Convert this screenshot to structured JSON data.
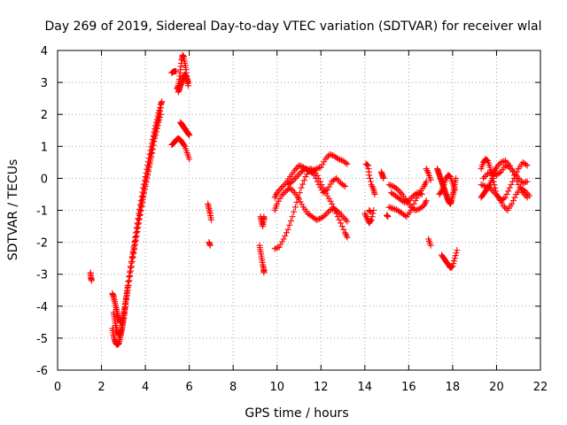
{
  "chart_data": {
    "type": "scatter",
    "title": "Day 269 of 2019, Sidereal Day-to-day VTEC variation (SDTVAR) for receiver wlal",
    "xlabel": "GPS time / hours",
    "ylabel": "SDTVAR / TECUs",
    "xlim": [
      0,
      22
    ],
    "ylim": [
      -6,
      4
    ],
    "xticks": [
      0,
      2,
      4,
      6,
      8,
      10,
      12,
      14,
      16,
      18,
      20,
      22
    ],
    "yticks": [
      -6,
      -5,
      -4,
      -3,
      -2,
      -1,
      0,
      1,
      2,
      3,
      4
    ],
    "grid": true,
    "marker": "+",
    "color": "#ff0000",
    "series": [
      {
        "name": "SDTVAR",
        "segments": [
          {
            "x": [
              1.5,
              1.52,
              1.55
            ],
            "y": [
              -2.95,
              -3.1,
              -3.2
            ]
          },
          {
            "x": [
              2.5,
              2.55,
              2.6,
              2.65,
              2.7,
              2.75,
              2.8,
              2.85,
              2.9,
              2.95,
              3.0,
              3.05,
              3.1,
              3.15,
              3.2,
              3.3,
              3.4,
              3.5,
              3.6,
              3.7,
              3.8,
              3.9,
              4.0,
              4.1,
              4.2,
              4.3,
              4.4,
              4.5,
              4.6,
              4.7
            ],
            "y": [
              -3.6,
              -3.7,
              -3.85,
              -4.0,
              -4.15,
              -4.3,
              -4.4,
              -4.5,
              -4.5,
              -4.45,
              -4.3,
              -4.1,
              -3.85,
              -3.6,
              -3.35,
              -2.95,
              -2.5,
              -2.1,
              -1.7,
              -1.3,
              -0.9,
              -0.55,
              -0.2,
              0.15,
              0.5,
              0.9,
              1.3,
              1.6,
              1.9,
              2.2
            ]
          },
          {
            "x": [
              2.5,
              2.55,
              2.6,
              2.65,
              2.7,
              2.75,
              2.8,
              2.85,
              2.9,
              2.95,
              3.0,
              3.05,
              3.1,
              3.2,
              3.3,
              3.4,
              3.5,
              3.6,
              3.7,
              3.8,
              3.9,
              4.0,
              4.1,
              4.2,
              4.3,
              4.4,
              4.5,
              4.6,
              4.7
            ],
            "y": [
              -4.7,
              -4.9,
              -5.05,
              -5.15,
              -5.2,
              -5.2,
              -5.15,
              -5.0,
              -4.85,
              -4.65,
              -4.45,
              -4.2,
              -3.95,
              -3.5,
              -3.05,
              -2.6,
              -2.2,
              -1.8,
              -1.4,
              -1.0,
              -0.6,
              -0.25,
              0.1,
              0.45,
              0.8,
              1.15,
              1.45,
              1.75,
              2.0
            ]
          },
          {
            "x": [
              2.55,
              2.6,
              2.65,
              2.7,
              2.75,
              2.8,
              2.85,
              2.9,
              2.95,
              3.0,
              3.1,
              3.2,
              3.3,
              3.4,
              3.5,
              3.6,
              3.7,
              3.8,
              3.9,
              4.0,
              4.1,
              4.2,
              4.3,
              4.4,
              4.5,
              4.6,
              4.7,
              4.75
            ],
            "y": [
              -4.2,
              -4.4,
              -4.6,
              -4.75,
              -4.85,
              -4.9,
              -4.85,
              -4.75,
              -4.6,
              -4.4,
              -3.9,
              -3.4,
              -2.9,
              -2.45,
              -2.0,
              -1.55,
              -1.1,
              -0.7,
              -0.3,
              0.05,
              0.4,
              0.75,
              1.1,
              1.45,
              1.75,
              2.05,
              2.3,
              2.4
            ]
          },
          {
            "x": [
              5.2,
              5.3,
              5.4
            ],
            "y": [
              3.3,
              3.35,
              3.35
            ]
          },
          {
            "x": [
              5.45,
              5.5,
              5.55,
              5.6,
              5.65,
              5.7,
              5.75,
              5.8,
              5.85,
              5.9,
              5.95
            ],
            "y": [
              2.8,
              2.9,
              3.1,
              3.4,
              3.7,
              3.85,
              3.8,
              3.6,
              3.4,
              3.1,
              2.9
            ]
          },
          {
            "x": [
              5.5,
              5.55,
              5.6,
              5.65,
              5.7,
              5.75,
              5.8,
              5.85,
              5.9,
              5.95
            ],
            "y": [
              2.7,
              2.8,
              2.9,
              3.0,
              3.1,
              3.2,
              3.25,
              3.2,
              3.1,
              3.0
            ]
          },
          {
            "x": [
              5.6,
              5.65,
              5.7,
              5.75,
              5.8,
              5.85,
              5.9,
              5.95,
              6.0
            ],
            "y": [
              1.75,
              1.7,
              1.65,
              1.6,
              1.55,
              1.5,
              1.45,
              1.4,
              1.35
            ]
          },
          {
            "x": [
              5.2,
              5.3,
              5.4,
              5.5,
              5.6,
              5.7,
              5.8,
              5.9,
              6.0
            ],
            "y": [
              1.05,
              1.1,
              1.2,
              1.25,
              1.2,
              1.1,
              1.0,
              0.8,
              0.6
            ]
          },
          {
            "x": [
              6.85,
              6.9,
              6.95,
              7.0
            ],
            "y": [
              -0.8,
              -0.95,
              -1.1,
              -1.3
            ]
          },
          {
            "x": [
              6.9,
              6.95
            ],
            "y": [
              -2.0,
              -2.1
            ]
          },
          {
            "x": [
              9.25,
              9.3,
              9.35,
              9.4,
              9.4
            ],
            "y": [
              -1.2,
              -1.35,
              -1.5,
              -1.3,
              -1.2
            ]
          },
          {
            "x": [
              9.2,
              9.25,
              9.3,
              9.35,
              9.4,
              9.4
            ],
            "y": [
              -2.1,
              -2.3,
              -2.5,
              -2.7,
              -2.85,
              -2.95
            ]
          },
          {
            "x": [
              9.9,
              10.0,
              10.2,
              10.4,
              10.6,
              10.8,
              11.0,
              11.2,
              11.4,
              11.6,
              11.8,
              12.0,
              12.2,
              12.4,
              12.6,
              12.8,
              13.0,
              13.2
            ],
            "y": [
              -0.6,
              -0.45,
              -0.3,
              -0.15,
              0.05,
              0.25,
              0.4,
              0.35,
              0.25,
              0.2,
              0.3,
              0.35,
              0.6,
              0.75,
              0.7,
              0.6,
              0.55,
              0.45
            ]
          },
          {
            "x": [
              9.9,
              10.0,
              10.2,
              10.4,
              10.6,
              10.8,
              11.0,
              11.2,
              11.4,
              11.6,
              11.8,
              12.0,
              12.2,
              12.4,
              12.6,
              12.8,
              13.0,
              13.2
            ],
            "y": [
              -1.0,
              -0.8,
              -0.55,
              -0.4,
              -0.3,
              -0.45,
              -0.65,
              -0.9,
              -1.1,
              -1.2,
              -1.3,
              -1.25,
              -1.15,
              -1.0,
              -0.95,
              -1.05,
              -1.2,
              -1.35
            ]
          },
          {
            "x": [
              9.9,
              10.1,
              10.3,
              10.5,
              10.7,
              10.9,
              11.1,
              11.3,
              11.5,
              11.7,
              11.9,
              12.1,
              12.3,
              12.5,
              12.7,
              12.9,
              13.1,
              13.2
            ],
            "y": [
              -2.2,
              -2.15,
              -1.9,
              -1.6,
              -1.2,
              -0.75,
              -0.3,
              0.05,
              0.3,
              0.25,
              0.0,
              -0.3,
              -0.55,
              -0.8,
              -1.1,
              -1.4,
              -1.7,
              -1.85
            ]
          },
          {
            "x": [
              10.5,
              10.7,
              10.9,
              11.1,
              11.3,
              11.5,
              11.7,
              11.9,
              12.1,
              12.3,
              12.5,
              12.7,
              12.9,
              13.1
            ],
            "y": [
              -0.2,
              -0.1,
              0.05,
              0.2,
              0.3,
              0.25,
              0.1,
              -0.2,
              -0.45,
              -0.35,
              -0.1,
              0.0,
              -0.15,
              -0.25
            ]
          },
          {
            "x": [
              14.05,
              14.15,
              14.2,
              14.3,
              14.4,
              14.45
            ],
            "y": [
              0.45,
              0.4,
              0.1,
              -0.2,
              -0.35,
              -0.5
            ]
          },
          {
            "x": [
              14.0,
              14.1,
              14.2,
              14.3,
              14.4
            ],
            "y": [
              -1.1,
              -1.25,
              -1.4,
              -1.3,
              -1.0
            ]
          },
          {
            "x": [
              14.2,
              14.25
            ],
            "y": [
              -1.0,
              -1.05
            ]
          },
          {
            "x": [
              14.75,
              14.8,
              14.85
            ],
            "y": [
              0.2,
              0.1,
              0.0
            ]
          },
          {
            "x": [
              15.1,
              15.3,
              15.5,
              15.7,
              15.9,
              16.1,
              16.3,
              16.5,
              16.7,
              16.8
            ],
            "y": [
              -0.2,
              -0.25,
              -0.35,
              -0.5,
              -0.7,
              -0.9,
              -1.0,
              -0.95,
              -0.85,
              -0.7
            ]
          },
          {
            "x": [
              15.1,
              15.3,
              15.5,
              15.7,
              15.9,
              16.1,
              16.3,
              16.5,
              16.7,
              16.8
            ],
            "y": [
              -0.9,
              -0.95,
              -1.0,
              -1.1,
              -1.2,
              -1.0,
              -0.7,
              -0.45,
              -0.25,
              -0.1
            ]
          },
          {
            "x": [
              15.2,
              15.4,
              15.6,
              15.8,
              16.0,
              16.2,
              16.4,
              16.6
            ],
            "y": [
              -0.45,
              -0.55,
              -0.65,
              -0.75,
              -0.7,
              -0.55,
              -0.45,
              -0.5
            ]
          },
          {
            "x": [
              15.0,
              15.05
            ],
            "y": [
              -1.15,
              -1.2
            ]
          },
          {
            "x": [
              16.8,
              16.9,
              17.0
            ],
            "y": [
              0.3,
              0.15,
              -0.05
            ]
          },
          {
            "x": [
              16.9,
              17.0
            ],
            "y": [
              -1.9,
              -2.1
            ]
          },
          {
            "x": [
              17.3,
              17.35,
              17.4,
              17.45,
              17.5,
              17.55,
              17.6,
              17.65,
              17.7,
              17.75,
              17.8,
              17.85,
              17.9,
              17.95,
              18.0,
              18.05,
              18.1,
              18.15
            ],
            "y": [
              0.3,
              0.2,
              0.1,
              0.0,
              -0.1,
              -0.2,
              -0.3,
              -0.4,
              -0.5,
              -0.6,
              -0.7,
              -0.75,
              -0.8,
              -0.7,
              -0.55,
              -0.4,
              -0.2,
              0.0
            ]
          },
          {
            "x": [
              17.4,
              17.5,
              17.6,
              17.7,
              17.8,
              17.9,
              18.0,
              18.1
            ],
            "y": [
              -0.5,
              -0.4,
              -0.2,
              0.0,
              0.1,
              0.05,
              -0.15,
              -0.35
            ]
          },
          {
            "x": [
              17.5,
              17.6,
              17.7,
              17.8,
              17.9,
              18.0,
              18.1,
              18.2
            ],
            "y": [
              -2.4,
              -2.5,
              -2.6,
              -2.7,
              -2.8,
              -2.75,
              -2.5,
              -2.25
            ]
          },
          {
            "x": [
              19.3,
              19.4,
              19.5,
              19.6,
              19.7,
              19.8,
              19.9,
              20.0,
              20.2,
              20.4,
              20.6,
              20.8,
              21.0,
              21.2,
              21.4
            ],
            "y": [
              0.3,
              0.5,
              0.6,
              0.55,
              0.35,
              0.1,
              -0.2,
              -0.5,
              -0.7,
              -0.6,
              -0.3,
              0.0,
              0.3,
              0.5,
              0.4
            ]
          },
          {
            "x": [
              19.3,
              19.4,
              19.5,
              19.6,
              19.7,
              19.8,
              19.9,
              20.0,
              20.2,
              20.4,
              20.6,
              20.8,
              21.0,
              21.2,
              21.4
            ],
            "y": [
              -0.6,
              -0.5,
              -0.4,
              -0.3,
              -0.2,
              0.0,
              0.2,
              0.35,
              0.5,
              0.55,
              0.4,
              0.1,
              -0.2,
              -0.45,
              -0.6
            ]
          },
          {
            "x": [
              19.3,
              19.5,
              19.7,
              19.9,
              20.1,
              20.3,
              20.5,
              20.7,
              20.9,
              21.1,
              21.3,
              21.5
            ],
            "y": [
              -0.2,
              -0.25,
              -0.3,
              -0.45,
              -0.6,
              -0.85,
              -1.0,
              -0.8,
              -0.5,
              -0.3,
              -0.4,
              -0.55
            ]
          },
          {
            "x": [
              19.4,
              19.6,
              19.8,
              20.0,
              20.2,
              20.4,
              20.6,
              20.8,
              21.0,
              21.2,
              21.4
            ],
            "y": [
              0.0,
              0.15,
              0.2,
              0.1,
              0.2,
              0.4,
              0.35,
              0.2,
              0.0,
              -0.15,
              -0.1
            ]
          }
        ]
      }
    ]
  }
}
